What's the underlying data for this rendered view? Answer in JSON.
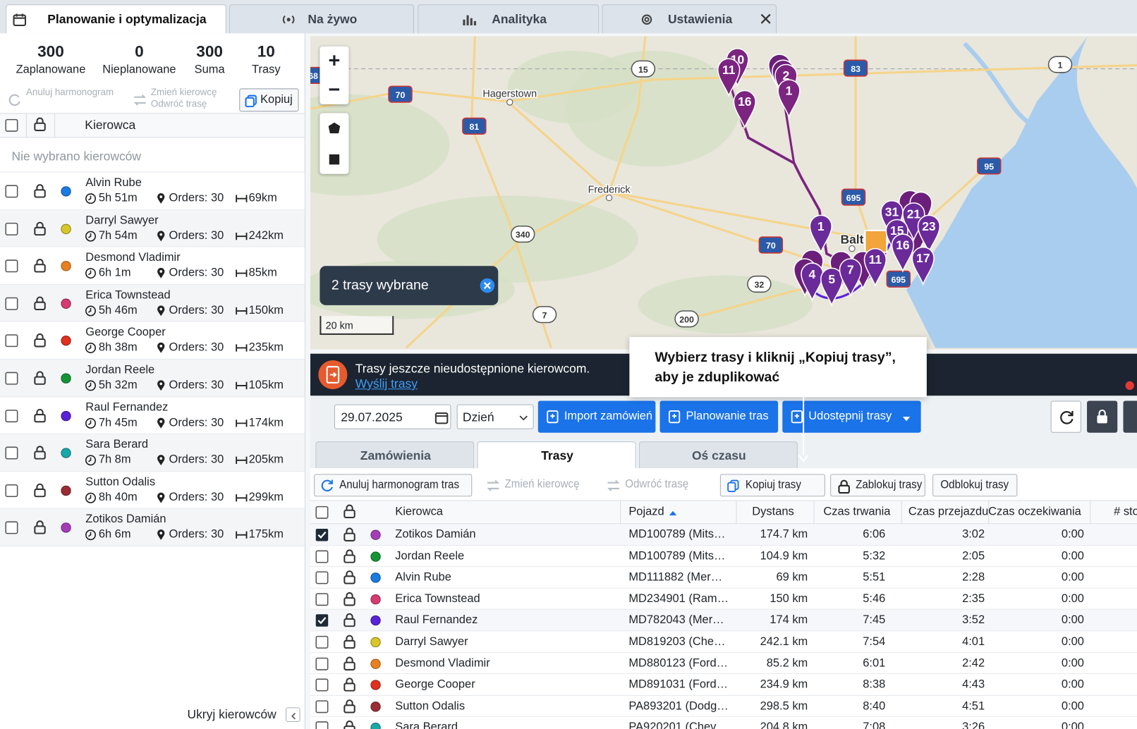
{
  "tabs": [
    {
      "label": "Planowanie i optymalizacja",
      "active": true
    },
    {
      "label": "Na żywo",
      "active": false
    },
    {
      "label": "Analityka",
      "active": false
    },
    {
      "label": "Ustawienia",
      "active": false
    }
  ],
  "stats": [
    {
      "value": 300,
      "label": "Zaplanowane"
    },
    {
      "value": 0,
      "label": "Nieplanowane"
    },
    {
      "value": 300,
      "label": "Suma"
    },
    {
      "value": 10,
      "label": "Trasy"
    }
  ],
  "left_toolbar": {
    "cancel": "Anuluj harmonogram",
    "change": "Zmień kierowcę",
    "reverse": "Odwróć trasę",
    "copy": "Kopiuj"
  },
  "left_header": "Kierowca",
  "left_empty": "Nie wybrano kierowców",
  "drivers": [
    {
      "name": "Alvin Rube",
      "color": "#1a7be0",
      "time": "5h 51m",
      "orders": "Orders: 30",
      "distance": "69km"
    },
    {
      "name": "Darryl Sawyer",
      "color": "#d9c72a",
      "time": "7h 54m",
      "orders": "Orders: 30",
      "distance": "242km"
    },
    {
      "name": "Desmond Vladimir",
      "color": "#e8801f",
      "time": "6h 1m",
      "orders": "Orders: 30",
      "distance": "85km"
    },
    {
      "name": "Erica Townstead",
      "color": "#d63a6e",
      "time": "5h 46m",
      "orders": "Orders: 30",
      "distance": "150km"
    },
    {
      "name": "George Cooper",
      "color": "#e0301e",
      "time": "8h 38m",
      "orders": "Orders: 30",
      "distance": "235km"
    },
    {
      "name": "Jordan Reele",
      "color": "#149436",
      "time": "5h 32m",
      "orders": "Orders: 30",
      "distance": "105km"
    },
    {
      "name": "Raul Fernandez",
      "color": "#5b22d9",
      "time": "7h 45m",
      "orders": "Orders: 30",
      "distance": "174km"
    },
    {
      "name": "Sara Berard",
      "color": "#17a8a8",
      "time": "7h 8m",
      "orders": "Orders: 30",
      "distance": "205km"
    },
    {
      "name": "Sutton Odalis",
      "color": "#9b2d35",
      "time": "8h 40m",
      "orders": "Orders: 30",
      "distance": "299km"
    },
    {
      "name": "Zotikos Damián",
      "color": "#a53cb8",
      "time": "6h 6m",
      "orders": "Orders: 30",
      "distance": "175km"
    }
  ],
  "hide_drivers": "Ukryj kierowców",
  "map": {
    "zoom_in": "+",
    "zoom_out": "−",
    "places": [
      "Hagerstown",
      "Frederick",
      "Balt"
    ],
    "shields": [
      "68",
      "70",
      "81",
      "15",
      "83",
      "1",
      "95",
      "695",
      "340",
      "70",
      "32",
      "7",
      "200",
      "695"
    ],
    "markers": [
      "10",
      "11",
      "16",
      "2",
      "1",
      "1",
      "4",
      "5",
      "7",
      "11",
      "31",
      "21",
      "15",
      "23",
      "16",
      "17"
    ],
    "selection": "2 trasy wybrane",
    "scale": "20 km"
  },
  "banner": {
    "text": "Trasy jeszcze nieudostępnione kierowcom.",
    "link": "Wyślij trasy"
  },
  "tooltip": [
    "Wybierz trasy i kliknij „Kopiuj trasy”,",
    "aby je zduplikować"
  ],
  "toolbar": {
    "date": "29.07.2025",
    "period": "Dzień",
    "import": "Import zamówień",
    "planning": "Planowanie tras",
    "share": "Udostępnij trasy"
  },
  "subtabs": [
    "Zamówienia",
    "Trasy",
    "Oś czasu"
  ],
  "actions": [
    "Anuluj harmonogram tras",
    "Zmień kierowcę",
    "Odwróć trasę",
    "Kopiuj trasy",
    "Zablokuj trasy",
    "Odblokuj trasy"
  ],
  "table": {
    "columns": [
      "Kierowca",
      "Pojazd",
      "Dystans",
      "Czas trwania",
      "Czas przejazdu",
      "Czas oczekiwania",
      "# stops"
    ],
    "rows": [
      {
        "checked": true,
        "color": "#a53cb8",
        "driver": "Zotikos Damián",
        "vehicle": "MD100789 (Mits…",
        "distance": "174.7 km",
        "duration": "6:06",
        "drive": "3:02",
        "wait": "0:00"
      },
      {
        "checked": false,
        "color": "#149436",
        "driver": "Jordan Reele",
        "vehicle": "MD100789 (Mits…",
        "distance": "104.9 km",
        "duration": "5:32",
        "drive": "2:05",
        "wait": "0:00"
      },
      {
        "checked": false,
        "color": "#1a7be0",
        "driver": "Alvin Rube",
        "vehicle": "MD111882 (Mer…",
        "distance": "69 km",
        "duration": "5:51",
        "drive": "2:28",
        "wait": "0:00"
      },
      {
        "checked": false,
        "color": "#d63a6e",
        "driver": "Erica Townstead",
        "vehicle": "MD234901 (Ram…",
        "distance": "150 km",
        "duration": "5:46",
        "drive": "2:35",
        "wait": "0:00"
      },
      {
        "checked": true,
        "color": "#5b22d9",
        "driver": "Raul Fernandez",
        "vehicle": "MD782043 (Mer…",
        "distance": "174 km",
        "duration": "7:45",
        "drive": "3:52",
        "wait": "0:00"
      },
      {
        "checked": false,
        "color": "#d9c72a",
        "driver": "Darryl Sawyer",
        "vehicle": "MD819203 (Che…",
        "distance": "242.1 km",
        "duration": "7:54",
        "drive": "4:01",
        "wait": "0:00"
      },
      {
        "checked": false,
        "color": "#e8801f",
        "driver": "Desmond Vladimir",
        "vehicle": "MD880123 (Ford…",
        "distance": "85.2 km",
        "duration": "6:01",
        "drive": "2:42",
        "wait": "0:00"
      },
      {
        "checked": false,
        "color": "#e0301e",
        "driver": "George Cooper",
        "vehicle": "MD891031 (Ford…",
        "distance": "234.9 km",
        "duration": "8:38",
        "drive": "4:43",
        "wait": "0:00"
      },
      {
        "checked": false,
        "color": "#9b2d35",
        "driver": "Sutton Odalis",
        "vehicle": "PA893201 (Dodg…",
        "distance": "298.5 km",
        "duration": "8:40",
        "drive": "4:51",
        "wait": "0:00"
      },
      {
        "checked": false,
        "color": "#17a8a8",
        "driver": "Sara Berard",
        "vehicle": "PA920201 (Chev…",
        "distance": "204.8 km",
        "duration": "7:08",
        "drive": "3:26",
        "wait": "0:00"
      }
    ]
  }
}
